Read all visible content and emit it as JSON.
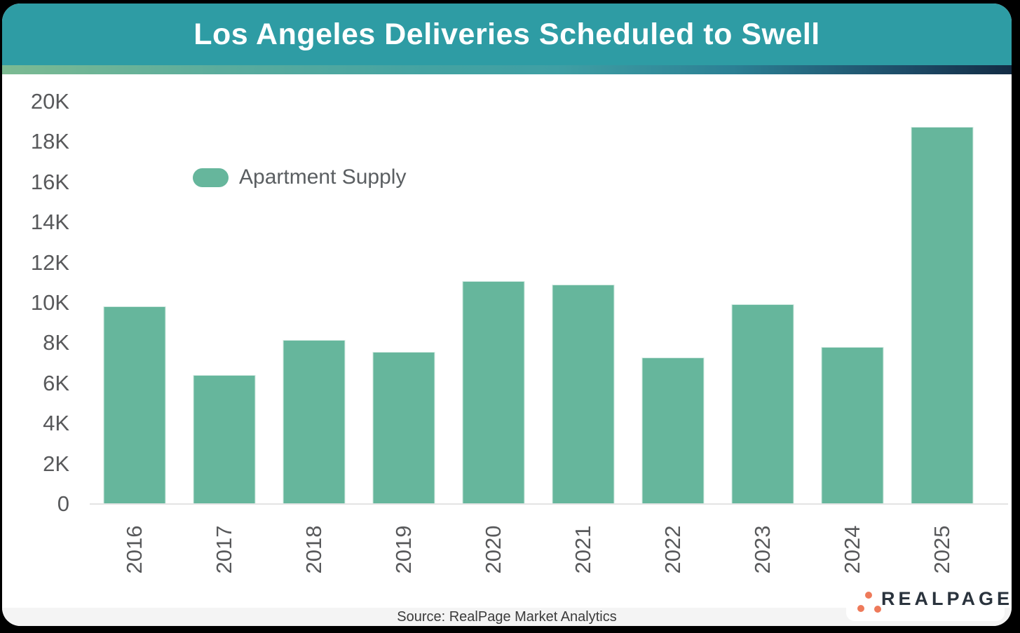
{
  "header": {
    "title": "Los Angeles Deliveries Scheduled to Swell"
  },
  "chart_data": {
    "type": "bar",
    "title": "Los Angeles Deliveries Scheduled to Swell",
    "categories": [
      "2016",
      "2017",
      "2018",
      "2019",
      "2020",
      "2021",
      "2022",
      "2023",
      "2024",
      "2025"
    ],
    "series": [
      {
        "name": "Apartment Supply",
        "color": "#66b69c",
        "values": [
          9800,
          6400,
          8150,
          7550,
          11050,
          10900,
          7250,
          9900,
          7800,
          18750
        ]
      }
    ],
    "legend": {
      "label": "Apartment Supply",
      "position": "inside-top-left"
    },
    "xlabel": "",
    "ylabel": "",
    "ylim": [
      0,
      20000
    ],
    "y_ticks": [
      "20K",
      "18K",
      "16K",
      "14K",
      "12K",
      "10K",
      "8K",
      "6K",
      "4K",
      "2K",
      "0"
    ],
    "grid": false,
    "x_label_rotation": -90
  },
  "footer": {
    "source": "Source: RealPage Market Analytics",
    "logo_text": "REALPAGE"
  },
  "colors": {
    "header_bg": "#2e9ca4",
    "bar": "#66b69c",
    "axis_label": "#58595b",
    "axis_line": "#e4e4e4",
    "footer_bg": "#f4f4f4",
    "logo_orange": "#ee7a5a",
    "logo_navy": "#2a333d",
    "accent_gradient": [
      "#7cba92",
      "#3f9fa4",
      "#132c44"
    ],
    "frame": "#000000"
  }
}
